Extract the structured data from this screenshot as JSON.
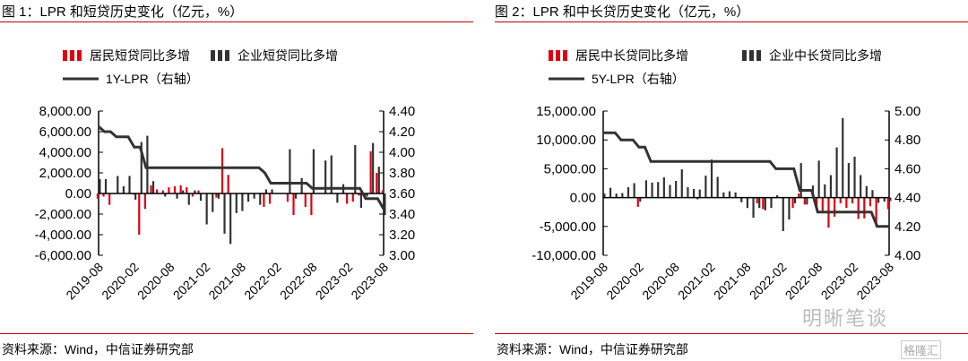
{
  "sources": [
    "资料来源：Wind，中信证券研究部",
    "资料来源：Wind，中信证券研究部"
  ],
  "watermark": "明晰笔谈",
  "watermark2": "格隆汇",
  "colors": {
    "red": "#e00012",
    "dark": "#333333"
  },
  "chart_data": [
    {
      "type": "bar",
      "title": "图 1：LPR 和短贷历史变化（亿元，%）",
      "xlabels": [
        "2019-08",
        "2020-02",
        "2020-08",
        "2021-02",
        "2021-08",
        "2022-02",
        "2022-08",
        "2023-02",
        "2023-08"
      ],
      "ylim": [
        -6000,
        8000
      ],
      "yticks": [
        "8,000.00",
        "6,000.00",
        "4,000.00",
        "2,000.00",
        "0.00",
        "-2,000.00",
        "-4,000.00",
        "-6,000.00"
      ],
      "y2lim": [
        3.0,
        4.4
      ],
      "y2ticks": [
        "4.40",
        "4.20",
        "4.00",
        "3.80",
        "3.60",
        "3.40",
        "3.20",
        "3.00"
      ],
      "series": [
        {
          "name": "居民短贷同比多增",
          "kind": "bar",
          "color": "#e00012",
          "values": [
            -500,
            -300,
            -1100,
            0,
            0,
            0,
            -100,
            -4000,
            -1500,
            800,
            400,
            300,
            600,
            700,
            800,
            600,
            -300,
            300,
            0,
            0,
            -400,
            4400,
            1800,
            0,
            0,
            0,
            0,
            0,
            -1300,
            -1000,
            0,
            0,
            -800,
            -2100,
            0,
            -1300,
            -2100,
            0,
            0,
            0,
            0,
            0,
            -1000,
            -800,
            -200,
            -500,
            4100,
            2000,
            300
          ]
        },
        {
          "name": "企业短贷同比多增",
          "kind": "bar",
          "color": "#333333",
          "values": [
            1400,
            1400,
            0,
            1700,
            700,
            1700,
            -600,
            5000,
            5600,
            1200,
            0,
            -300,
            0,
            -500,
            300,
            -1100,
            300,
            -700,
            -3000,
            -1800,
            -500,
            -3900,
            -4900,
            -1900,
            -1700,
            -800,
            -500,
            -1100,
            400,
            400,
            0,
            0,
            4300,
            -500,
            1500,
            0,
            4300,
            0,
            3200,
            3700,
            -900,
            900,
            0,
            4700,
            -1400,
            -300,
            4900,
            2600,
            -2100
          ]
        },
        {
          "name": "1Y-LPR（右轴）",
          "kind": "line",
          "color": "#333333",
          "values": [
            4.25,
            4.2,
            4.2,
            4.15,
            4.15,
            4.15,
            4.05,
            4.05,
            3.85,
            3.85,
            3.85,
            3.85,
            3.85,
            3.85,
            3.85,
            3.85,
            3.85,
            3.85,
            3.85,
            3.85,
            3.85,
            3.85,
            3.85,
            3.85,
            3.85,
            3.85,
            3.85,
            3.85,
            3.8,
            3.7,
            3.7,
            3.7,
            3.7,
            3.7,
            3.7,
            3.7,
            3.65,
            3.65,
            3.65,
            3.65,
            3.65,
            3.65,
            3.65,
            3.65,
            3.65,
            3.55,
            3.55,
            3.55,
            3.45
          ]
        }
      ]
    },
    {
      "type": "bar",
      "title": "图 2：LPR 和中长贷历史变化（亿元，%）",
      "xlabels": [
        "2019-08",
        "2020-02",
        "2020-08",
        "2021-02",
        "2021-08",
        "2022-02",
        "2022-08",
        "2023-02",
        "2023-08"
      ],
      "ylim": [
        -10000,
        15000
      ],
      "yticks": [
        "15,000.00",
        "10,000.00",
        "5,000.00",
        "0.00",
        "-5,000.00",
        "-10,000.00"
      ],
      "y2lim": [
        4.0,
        5.0
      ],
      "y2ticks": [
        "5.00",
        "4.80",
        "4.60",
        "4.40",
        "4.20",
        "4.00"
      ],
      "series": [
        {
          "name": "居民中长贷同比多增",
          "kind": "bar",
          "color": "#e00012",
          "values": [
            0,
            0,
            0,
            0,
            0,
            0,
            -1600,
            0,
            0,
            0,
            0,
            0,
            0,
            0,
            0,
            0,
            -300,
            0,
            0,
            0,
            0,
            0,
            0,
            0,
            0,
            0,
            -1000,
            -2000,
            0,
            0,
            0,
            0,
            -1800,
            700,
            -1200,
            0,
            -2000,
            -2300,
            -5200,
            -3300,
            -1000,
            -1800,
            -1000,
            -3700,
            -3600,
            -1500,
            -5000,
            0,
            -2000
          ]
        },
        {
          "name": "企业中长贷同比多增",
          "kind": "bar",
          "color": "#333333",
          "values": [
            700,
            1700,
            700,
            800,
            1800,
            2500,
            -700,
            3000,
            2600,
            2700,
            3500,
            2200,
            2900,
            4900,
            1800,
            1500,
            1400,
            3800,
            6600,
            3600,
            900,
            1100,
            900,
            -800,
            -1800,
            -3500,
            -1800,
            -2200,
            -1800,
            400,
            -5800,
            -3800,
            -1000,
            6000,
            -1200,
            2100,
            6400,
            2300,
            3900,
            8700,
            13800,
            6000,
            7100,
            3900,
            2000,
            1300,
            -900,
            -700,
            -600
          ]
        },
        {
          "name": "5Y-LPR（右轴）",
          "kind": "line",
          "color": "#333333",
          "values": [
            4.85,
            4.85,
            4.85,
            4.8,
            4.8,
            4.8,
            4.75,
            4.75,
            4.65,
            4.65,
            4.65,
            4.65,
            4.65,
            4.65,
            4.65,
            4.65,
            4.65,
            4.65,
            4.65,
            4.65,
            4.65,
            4.65,
            4.65,
            4.65,
            4.65,
            4.65,
            4.65,
            4.65,
            4.65,
            4.6,
            4.6,
            4.6,
            4.6,
            4.45,
            4.45,
            4.45,
            4.3,
            4.3,
            4.3,
            4.3,
            4.3,
            4.3,
            4.3,
            4.3,
            4.3,
            4.3,
            4.2,
            4.2,
            4.2
          ]
        }
      ]
    }
  ]
}
